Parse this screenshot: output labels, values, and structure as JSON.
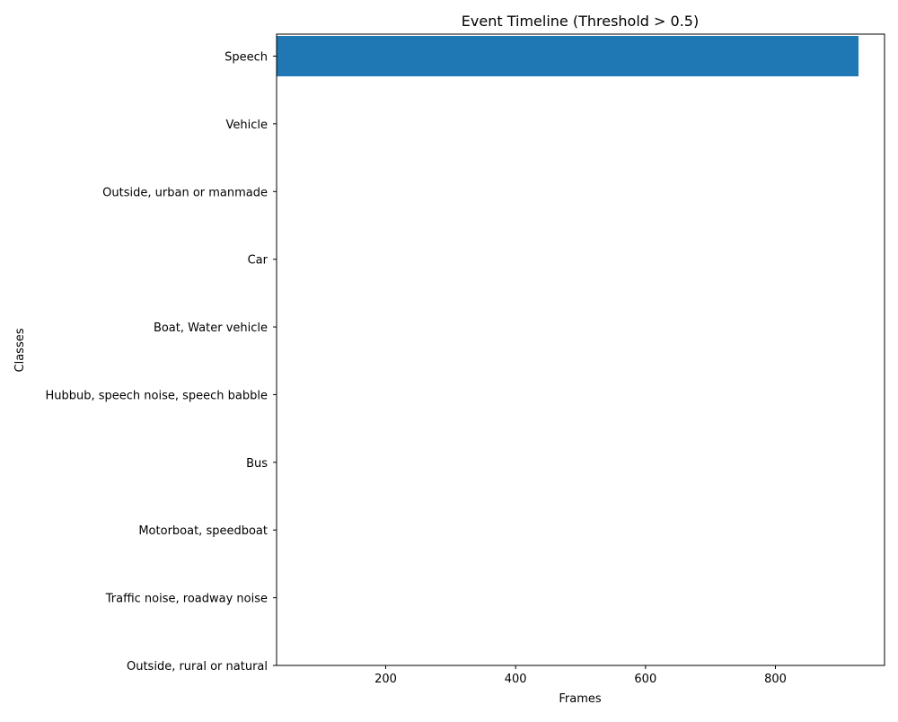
{
  "chart_data": {
    "type": "bar",
    "orientation": "horizontal",
    "title": "Event Timeline (Threshold > 0.5)",
    "xlabel": "Frames",
    "ylabel": "Classes",
    "xlim": [
      32,
      968
    ],
    "x_ticks": [
      200,
      400,
      600,
      800
    ],
    "categories": [
      "Speech",
      "Vehicle",
      "Outside, urban or manmade",
      "Car",
      "Boat, Water vehicle",
      "Hubbub, speech noise, speech babble",
      "Bus",
      "Motorboat, speedboat",
      "Traffic noise, roadway noise",
      "Outside, rural or natural"
    ],
    "bars": [
      {
        "category": "Speech",
        "start": 32,
        "end": 928
      }
    ],
    "grid": false,
    "bar_color": "#1f77b4"
  }
}
